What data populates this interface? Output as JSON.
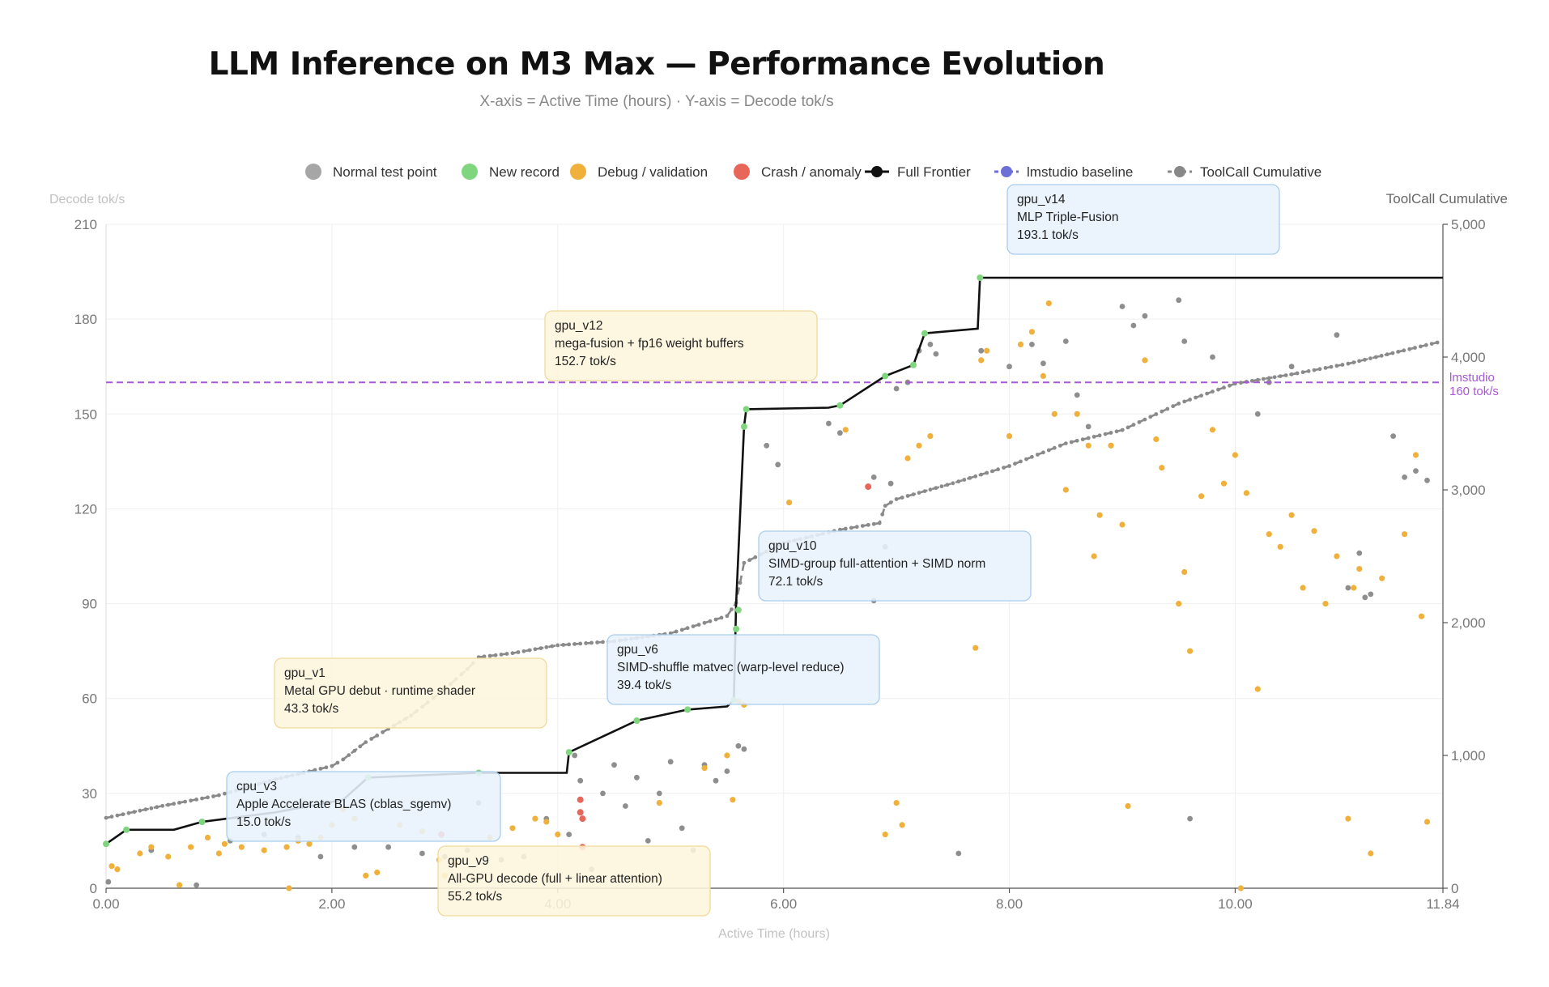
{
  "chart_data": {
    "type": "scatter",
    "title": "LLM Inference on M3 Max — Performance Evolution",
    "subtitle": "X-axis = Active Time (hours) · Y-axis = Decode tok/s",
    "xlabel": "Active Time (hours)",
    "ylabel": "Decode tok/s",
    "y2label": "ToolCall Cumulative",
    "xlim": [
      0,
      11.84
    ],
    "ylim": [
      0,
      210
    ],
    "y2lim": [
      0,
      5000
    ],
    "x_ticks": [
      "0.00",
      "2.00",
      "4.00",
      "6.00",
      "8.00",
      "10.00",
      "11.84"
    ],
    "y_ticks": [
      "0",
      "30",
      "60",
      "90",
      "120",
      "150",
      "180",
      "210"
    ],
    "y2_ticks": [
      "0",
      "1,000",
      "2,000",
      "3,000",
      "4,000",
      "5,000"
    ],
    "grid": true,
    "legend_position": "top",
    "legend": [
      {
        "label": "Normal test point",
        "kind": "dot",
        "color": "#a6a6a6"
      },
      {
        "label": "New record",
        "kind": "dot",
        "color": "#7fd67f"
      },
      {
        "label": "Debug / validation",
        "kind": "dot",
        "color": "#f0b03c"
      },
      {
        "label": "Crash / anomaly",
        "kind": "dot",
        "color": "#e8655a"
      },
      {
        "label": "Full Frontier",
        "kind": "line-dot",
        "color": "#111111"
      },
      {
        "label": "lmstudio baseline",
        "kind": "dash-dot",
        "color": "#6b6fd6"
      },
      {
        "label": "ToolCall Cumulative",
        "kind": "dash-dot",
        "color": "#888888"
      }
    ],
    "baseline": {
      "value": 160,
      "label_line1": "lmstudio",
      "label_line2": "160 tok/s",
      "color": "#a958d6"
    },
    "frontier": {
      "color": "#111111",
      "points": [
        [
          0,
          14
        ],
        [
          0.18,
          18.5
        ],
        [
          0.6,
          18.5
        ],
        [
          0.85,
          21
        ],
        [
          1.5,
          24
        ],
        [
          2.1,
          28
        ],
        [
          2.32,
          35
        ],
        [
          2.33,
          35
        ],
        [
          3.3,
          36.5
        ],
        [
          4.08,
          36.5
        ],
        [
          4.1,
          43
        ],
        [
          4.7,
          53
        ],
        [
          5.15,
          56.5
        ],
        [
          5.5,
          57.5
        ],
        [
          5.56,
          59.5
        ],
        [
          5.58,
          90
        ],
        [
          5.65,
          146
        ],
        [
          5.67,
          151.5
        ],
        [
          6.4,
          152
        ],
        [
          6.5,
          152.7
        ],
        [
          6.9,
          162
        ],
        [
          7.15,
          165.5
        ],
        [
          7.25,
          175.5
        ],
        [
          7.72,
          177
        ],
        [
          7.74,
          193.1
        ],
        [
          11.84,
          193.1
        ]
      ],
      "records": [
        [
          0,
          14
        ],
        [
          0.18,
          18.5
        ],
        [
          0.85,
          21
        ],
        [
          2.32,
          35
        ],
        [
          3.3,
          36.5
        ],
        [
          4.1,
          43
        ],
        [
          4.7,
          53
        ],
        [
          5.15,
          56.5
        ],
        [
          5.56,
          59.5
        ],
        [
          5.58,
          82
        ],
        [
          5.6,
          88
        ],
        [
          5.65,
          146
        ],
        [
          5.67,
          151.5
        ],
        [
          6.5,
          152.7
        ],
        [
          6.9,
          162
        ],
        [
          7.15,
          165.5
        ],
        [
          7.25,
          175.5
        ],
        [
          7.74,
          193.1
        ]
      ]
    },
    "toolcall_cumulative": {
      "color": "#888888",
      "points": [
        [
          0,
          530
        ],
        [
          0.5,
          620
        ],
        [
          1.0,
          700
        ],
        [
          1.5,
          820
        ],
        [
          2.0,
          920
        ],
        [
          2.1,
          970
        ],
        [
          2.3,
          1100
        ],
        [
          2.5,
          1200
        ],
        [
          2.7,
          1300
        ],
        [
          3.0,
          1500
        ],
        [
          3.2,
          1650
        ],
        [
          3.3,
          1740
        ],
        [
          3.6,
          1770
        ],
        [
          4.0,
          1830
        ],
        [
          4.5,
          1860
        ],
        [
          5.0,
          1920
        ],
        [
          5.5,
          2050
        ],
        [
          5.58,
          2150
        ],
        [
          5.65,
          2450
        ],
        [
          6.0,
          2600
        ],
        [
          6.5,
          2700
        ],
        [
          6.85,
          2750
        ],
        [
          6.9,
          2880
        ],
        [
          7.0,
          2930
        ],
        [
          7.5,
          3050
        ],
        [
          8.0,
          3180
        ],
        [
          8.5,
          3350
        ],
        [
          9.0,
          3450
        ],
        [
          9.5,
          3650
        ],
        [
          10.0,
          3800
        ],
        [
          10.5,
          3870
        ],
        [
          11.0,
          3950
        ],
        [
          11.84,
          4120
        ]
      ]
    },
    "normal_points": [
      [
        0.02,
        2
      ],
      [
        0.4,
        12
      ],
      [
        0.8,
        1
      ],
      [
        1.1,
        15
      ],
      [
        1.4,
        17
      ],
      [
        1.7,
        16
      ],
      [
        1.9,
        10
      ],
      [
        2.2,
        13
      ],
      [
        2.5,
        13
      ],
      [
        2.8,
        11
      ],
      [
        3.0,
        10
      ],
      [
        3.2,
        12
      ],
      [
        3.3,
        27
      ],
      [
        3.5,
        9
      ],
      [
        3.7,
        10
      ],
      [
        3.9,
        22
      ],
      [
        4.1,
        17
      ],
      [
        4.15,
        42
      ],
      [
        4.2,
        34
      ],
      [
        4.3,
        6
      ],
      [
        4.4,
        30
      ],
      [
        4.5,
        39
      ],
      [
        4.6,
        26
      ],
      [
        4.7,
        35
      ],
      [
        4.8,
        15
      ],
      [
        4.9,
        30
      ],
      [
        5.0,
        40
      ],
      [
        5.1,
        19
      ],
      [
        5.2,
        12
      ],
      [
        5.3,
        39
      ],
      [
        5.4,
        34
      ],
      [
        5.5,
        37
      ],
      [
        5.6,
        45
      ],
      [
        5.65,
        44
      ],
      [
        5.85,
        140
      ],
      [
        5.95,
        134
      ],
      [
        6.4,
        147
      ],
      [
        6.5,
        144
      ],
      [
        6.8,
        130
      ],
      [
        6.95,
        128
      ],
      [
        7.0,
        158
      ],
      [
        7.1,
        160
      ],
      [
        7.2,
        170
      ],
      [
        7.3,
        172
      ],
      [
        7.35,
        169
      ],
      [
        7.75,
        170
      ],
      [
        8.0,
        165
      ],
      [
        8.2,
        172
      ],
      [
        8.3,
        166
      ],
      [
        8.5,
        173
      ],
      [
        8.6,
        156
      ],
      [
        8.7,
        146
      ],
      [
        8.9,
        140
      ],
      [
        9.0,
        184
      ],
      [
        9.1,
        178
      ],
      [
        9.2,
        181
      ],
      [
        9.5,
        186
      ],
      [
        9.55,
        173
      ],
      [
        9.8,
        168
      ],
      [
        10.2,
        150
      ],
      [
        10.3,
        160
      ],
      [
        10.5,
        165
      ],
      [
        10.9,
        175
      ],
      [
        11.0,
        95
      ],
      [
        11.1,
        106
      ],
      [
        11.15,
        92
      ],
      [
        11.2,
        93
      ],
      [
        11.4,
        143
      ],
      [
        11.5,
        130
      ],
      [
        11.6,
        132
      ],
      [
        11.7,
        129
      ],
      [
        6.8,
        91
      ],
      [
        6.9,
        108
      ],
      [
        9.6,
        22
      ],
      [
        7.55,
        11
      ]
    ],
    "debug_points": [
      [
        0.05,
        7
      ],
      [
        0.1,
        6
      ],
      [
        0.3,
        11
      ],
      [
        0.4,
        13
      ],
      [
        0.55,
        10
      ],
      [
        0.65,
        1
      ],
      [
        0.75,
        13
      ],
      [
        0.9,
        16
      ],
      [
        1.0,
        11
      ],
      [
        1.05,
        14
      ],
      [
        1.2,
        13
      ],
      [
        1.4,
        12
      ],
      [
        1.6,
        13
      ],
      [
        1.62,
        0
      ],
      [
        1.7,
        15
      ],
      [
        1.8,
        14
      ],
      [
        1.9,
        16
      ],
      [
        2.0,
        20
      ],
      [
        2.1,
        25
      ],
      [
        2.2,
        22
      ],
      [
        2.3,
        4
      ],
      [
        2.4,
        5
      ],
      [
        2.6,
        20
      ],
      [
        2.8,
        18
      ],
      [
        2.95,
        9
      ],
      [
        3.0,
        4
      ],
      [
        3.1,
        8
      ],
      [
        3.4,
        16
      ],
      [
        3.6,
        19
      ],
      [
        3.8,
        22
      ],
      [
        3.9,
        21
      ],
      [
        4.0,
        17
      ],
      [
        4.9,
        27
      ],
      [
        5.3,
        38
      ],
      [
        5.5,
        42
      ],
      [
        5.55,
        28
      ],
      [
        5.6,
        59
      ],
      [
        5.65,
        58
      ],
      [
        6.05,
        122
      ],
      [
        6.55,
        145
      ],
      [
        6.9,
        17
      ],
      [
        7.0,
        27
      ],
      [
        7.05,
        20
      ],
      [
        7.1,
        136
      ],
      [
        7.2,
        140
      ],
      [
        7.3,
        143
      ],
      [
        7.7,
        76
      ],
      [
        7.75,
        167
      ],
      [
        7.8,
        170
      ],
      [
        8.0,
        143
      ],
      [
        8.1,
        172
      ],
      [
        8.2,
        176
      ],
      [
        8.3,
        162
      ],
      [
        8.35,
        185
      ],
      [
        8.4,
        150
      ],
      [
        8.5,
        126
      ],
      [
        8.6,
        150
      ],
      [
        8.7,
        140
      ],
      [
        8.75,
        105
      ],
      [
        8.8,
        118
      ],
      [
        8.9,
        140
      ],
      [
        9.0,
        115
      ],
      [
        9.05,
        26
      ],
      [
        9.2,
        167
      ],
      [
        9.3,
        142
      ],
      [
        9.35,
        133
      ],
      [
        9.5,
        90
      ],
      [
        9.55,
        100
      ],
      [
        9.6,
        75
      ],
      [
        9.7,
        124
      ],
      [
        9.8,
        145
      ],
      [
        9.9,
        128
      ],
      [
        10.0,
        137
      ],
      [
        10.05,
        0
      ],
      [
        10.1,
        125
      ],
      [
        10.2,
        63
      ],
      [
        10.3,
        112
      ],
      [
        10.4,
        108
      ],
      [
        10.5,
        118
      ],
      [
        10.6,
        95
      ],
      [
        10.7,
        113
      ],
      [
        10.8,
        90
      ],
      [
        10.9,
        105
      ],
      [
        11.0,
        22
      ],
      [
        11.05,
        95
      ],
      [
        11.1,
        101
      ],
      [
        11.2,
        11
      ],
      [
        11.3,
        98
      ],
      [
        11.5,
        112
      ],
      [
        11.6,
        137
      ],
      [
        11.65,
        86
      ],
      [
        11.7,
        21
      ]
    ],
    "crash_points": [
      [
        2.97,
        17
      ],
      [
        4.2,
        28
      ],
      [
        4.2,
        24
      ],
      [
        4.22,
        13
      ],
      [
        4.22,
        22
      ],
      [
        6.75,
        127
      ]
    ],
    "annotations": [
      {
        "id": "gpu_v14",
        "line1": "gpu_v14",
        "line2": "MLP Triple-Fusion",
        "line3": "193.1 tok/s",
        "style": "blue"
      },
      {
        "id": "gpu_v12",
        "line1": "gpu_v12",
        "line2": "mega-fusion + fp16 weight buffers",
        "line3": "152.7 tok/s",
        "style": "yellow"
      },
      {
        "id": "gpu_v10",
        "line1": "gpu_v10",
        "line2": "SIMD-group full-attention + SIMD norm",
        "line3": "72.1 tok/s",
        "style": "blue"
      },
      {
        "id": "gpu_v6",
        "line1": "gpu_v6",
        "line2": "SIMD-shuffle matvec (warp-level reduce)",
        "line3": "39.4 tok/s",
        "style": "blue"
      },
      {
        "id": "gpu_v1",
        "line1": "gpu_v1",
        "line2": "Metal GPU debut · runtime shader",
        "line3": "43.3 tok/s",
        "style": "yellow"
      },
      {
        "id": "cpu_v3",
        "line1": "cpu_v3",
        "line2": "Apple Accelerate BLAS (cblas_sgemv)",
        "line3": "15.0 tok/s",
        "style": "blue"
      },
      {
        "id": "gpu_v9",
        "line1": "gpu_v9",
        "line2": "All-GPU decode (full + linear attention)",
        "line3": "55.2 tok/s",
        "style": "yellow"
      }
    ],
    "colors": {
      "normal": "#a6a6a6",
      "record": "#7fd67f",
      "debug": "#f0b03c",
      "crash": "#e8655a",
      "ann_blue_fill": "#e8f2fc",
      "ann_blue_stroke": "#a9cdee",
      "ann_yellow_fill": "#fdf6dd",
      "ann_yellow_stroke": "#f1d99a"
    }
  }
}
